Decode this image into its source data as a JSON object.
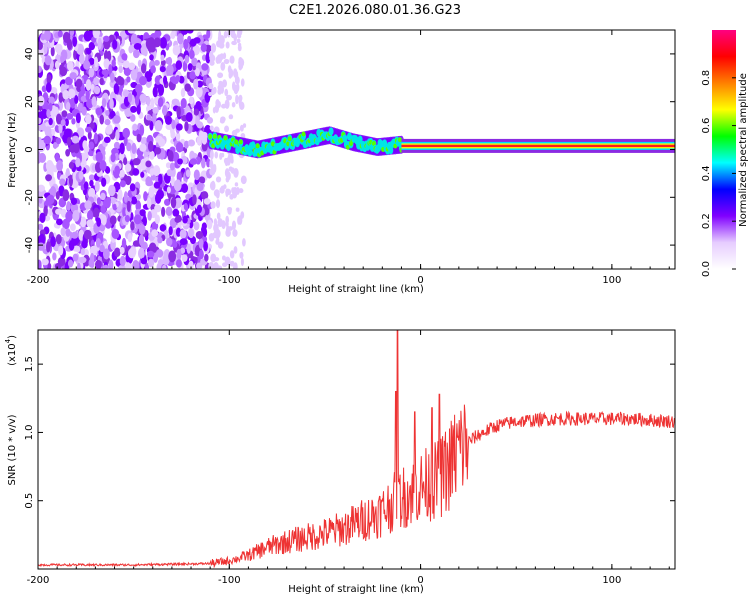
{
  "title": "C2E1.2026.080.01.36.G23",
  "chart_data": [
    {
      "type": "heatmap",
      "name": "spectrogram",
      "xlabel": "Height of straight line (km)",
      "ylabel": "Frequency (Hz)",
      "xlim": [
        -200,
        133
      ],
      "ylim": [
        -50,
        50
      ],
      "x_ticks": [
        -200,
        -100,
        0,
        100
      ],
      "y_ticks": [
        -40,
        -20,
        0,
        20,
        40
      ],
      "colorbar": {
        "label": "Normalized spectral amplitude",
        "range": [
          0,
          1
        ],
        "ticks": [
          0.0,
          0.2,
          0.4,
          0.6,
          0.8
        ],
        "tick_labels": [
          "0.0",
          "0.2",
          "0.4",
          "0.6",
          "0.8"
        ],
        "colormap": [
          "#ffffff",
          "#e6ccff",
          "#8000ff",
          "#0000ff",
          "#00ffff",
          "#00ff00",
          "#ffff00",
          "#ff8000",
          "#ff0000",
          "#ff0080"
        ]
      },
      "regions": [
        {
          "description": "noise",
          "x": [
            -200,
            -110
          ],
          "freq": [
            -50,
            50
          ]
        },
        {
          "description": "sparse noise",
          "x": [
            -110,
            -95
          ],
          "freq": [
            -50,
            50
          ]
        },
        {
          "description": "dispersed signal",
          "x": [
            -110,
            -10
          ],
          "freq_center": [
            4,
            2,
            0,
            2,
            4,
            6,
            3,
            1,
            2
          ],
          "spread": 4
        },
        {
          "description": "tone",
          "x": [
            -10,
            133
          ],
          "freq": 1.5,
          "amplitude": 0.95
        }
      ]
    },
    {
      "type": "line",
      "name": "snr",
      "xlabel": "Height of straight line (km)",
      "ylabel": "SNR (10 * v/v)",
      "scale_label": "(x10",
      "scale_exp": "4",
      "xlim": [
        -200,
        133
      ],
      "ylim": [
        0,
        1.75
      ],
      "x_ticks": [
        -200,
        -100,
        0,
        100
      ],
      "y_ticks": [
        0.5,
        1.0,
        1.5
      ],
      "y_tick_labels": [
        "0.5",
        "1.0",
        "1.5"
      ],
      "series": [
        {
          "name": "SNR",
          "color": "#ee3333",
          "x": [
            -200,
            -150,
            -110,
            -100,
            -90,
            -80,
            -70,
            -60,
            -50,
            -40,
            -30,
            -20,
            -15,
            -10,
            -5,
            0,
            5,
            10,
            15,
            20,
            30,
            40,
            50,
            60,
            70,
            80,
            90,
            100,
            110,
            120,
            133
          ],
          "y": [
            0.03,
            0.03,
            0.04,
            0.06,
            0.1,
            0.16,
            0.2,
            0.23,
            0.26,
            0.3,
            0.36,
            0.42,
            0.48,
            0.52,
            0.56,
            0.6,
            0.63,
            0.66,
            0.75,
            0.88,
            0.98,
            1.05,
            1.08,
            1.09,
            1.1,
            1.1,
            1.1,
            1.1,
            1.1,
            1.09,
            1.08
          ],
          "spikes": [
            {
              "x": -12,
              "y": 1.76
            },
            {
              "x": -13,
              "y": 1.3
            },
            {
              "x": -3,
              "y": 1.15
            },
            {
              "x": 10,
              "y": 1.28
            },
            {
              "x": 6,
              "y": 1.18
            }
          ]
        }
      ]
    }
  ]
}
